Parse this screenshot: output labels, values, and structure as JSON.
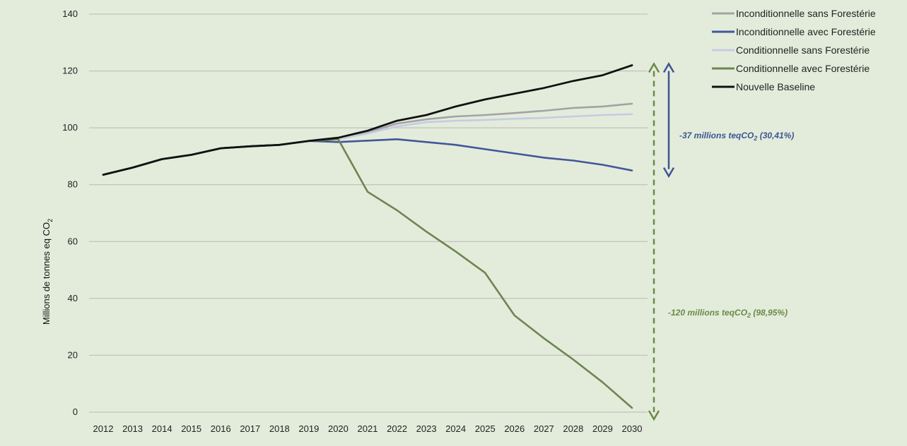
{
  "colors": {
    "background": "#e3ecdb",
    "grid": "#b7b7b7",
    "anno_blue": "#3d5592",
    "anno_green": "#6a8a46"
  },
  "chart_data": {
    "type": "line",
    "ylabel": "Millions de tonnes eq CO2",
    "ylabel_main": "Millions de tonnes eq CO",
    "ylabel_sub": "2",
    "ylim": [
      0,
      140
    ],
    "yticks": [
      0,
      20,
      40,
      60,
      80,
      100,
      120,
      140
    ],
    "grid": true,
    "legend_position": "top-right",
    "x": [
      2012,
      2013,
      2014,
      2015,
      2016,
      2017,
      2018,
      2019,
      2020,
      2021,
      2022,
      2023,
      2024,
      2025,
      2026,
      2027,
      2028,
      2029,
      2030
    ],
    "series": [
      {
        "name": "Inconditionnelle sans Forestérie",
        "color": "#a3a3a3",
        "values": [
          83.5,
          86,
          89,
          90.5,
          92.8,
          93.5,
          94,
          95.4,
          96,
          98.5,
          101.5,
          103,
          104,
          104.5,
          105.2,
          106,
          107,
          107.5,
          108.5
        ]
      },
      {
        "name": "Inconditionnelle avec Forestérie",
        "color": "#40579a",
        "values": [
          83.5,
          86,
          89,
          90.5,
          92.8,
          93.5,
          94,
          95.4,
          95,
          95.5,
          96,
          95,
          94,
          92.5,
          91,
          89.5,
          88.5,
          87,
          85
        ]
      },
      {
        "name": "Conditionnelle sans Forestérie",
        "color": "#c5cbe3",
        "values": [
          83.5,
          86,
          89,
          90.5,
          92.8,
          93.5,
          94,
          95.4,
          96,
          98,
          100.5,
          102,
          102.5,
          102.8,
          103.2,
          103.5,
          104,
          104.5,
          104.8
        ]
      },
      {
        "name": "Conditionnelle avec Forestérie",
        "color": "#6d8550",
        "values": [
          83.5,
          86,
          89,
          90.5,
          92.8,
          93.5,
          94,
          95.4,
          96,
          77.5,
          71,
          63.5,
          56.5,
          49,
          34,
          26,
          18.5,
          10.5,
          1.5
        ]
      },
      {
        "name": "Nouvelle Baseline",
        "color": "#111111",
        "values": [
          83.5,
          86,
          89,
          90.5,
          92.8,
          93.5,
          94,
          95.4,
          96.5,
          99,
          102.5,
          104.5,
          107.5,
          110,
          112,
          114,
          116.5,
          118.5,
          122
        ]
      }
    ],
    "annotations": [
      {
        "text_main": "-37 millions teqCO",
        "text_sub": "2",
        "text_tail": " (30,41%)"
      },
      {
        "text_main": "-120 millions teqCO",
        "text_sub": "2",
        "text_tail": " (98,95%)"
      }
    ]
  }
}
